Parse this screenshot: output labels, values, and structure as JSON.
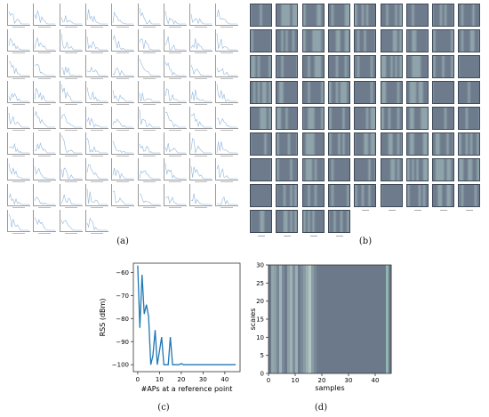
{
  "figure": {
    "captions": {
      "a": "(a)",
      "b": "(b)",
      "c": "(c)",
      "d": "(d)"
    }
  },
  "panel_a": {
    "count": 76,
    "columns": 9
  },
  "panel_b": {
    "count": 76,
    "columns": 9
  },
  "chart_data": [
    {
      "id": "c",
      "type": "line",
      "xlabel": "#APs at a reference point",
      "ylabel": "RSS (dBm)",
      "xlim": [
        -2,
        47
      ],
      "ylim": [
        -103,
        -56
      ],
      "xticks": [
        0,
        10,
        20,
        30,
        40
      ],
      "yticks": [
        -60,
        -70,
        -80,
        -90,
        -100
      ],
      "grid": false,
      "series": [
        {
          "color": "#1f77b4",
          "x": [
            0,
            1,
            2,
            3,
            4,
            5,
            6,
            7,
            8,
            9,
            10,
            11,
            12,
            13,
            14,
            15,
            16,
            17,
            18,
            19,
            20,
            21,
            22,
            23,
            24,
            25,
            26,
            27,
            28,
            29,
            30,
            31,
            32,
            33,
            34,
            35,
            36,
            37,
            38,
            39,
            40,
            41,
            42,
            43,
            44,
            45
          ],
          "y": [
            -57,
            -84,
            -61,
            -78,
            -74,
            -79,
            -100,
            -96,
            -85,
            -100,
            -94,
            -88,
            -100,
            -100,
            -100,
            -88,
            -100,
            -100,
            -100,
            -100,
            -99.5,
            -100,
            -100,
            -100,
            -100,
            -100,
            -100,
            -100,
            -100,
            -100,
            -100,
            -100,
            -100,
            -100,
            -100,
            -100,
            -100,
            -100,
            -100,
            -100,
            -100,
            -100,
            -100,
            -100,
            -100,
            -100
          ]
        }
      ]
    },
    {
      "id": "d",
      "type": "heatmap",
      "xlabel": "samples",
      "ylabel": "scales",
      "xlim": [
        0,
        46
      ],
      "ylim": [
        0,
        30
      ],
      "xticks": [
        0,
        10,
        20,
        30,
        40
      ],
      "yticks": [
        0,
        5,
        10,
        15,
        20,
        25,
        30
      ],
      "column_colors": [
        "#6b7a8a",
        "#93a7ad",
        "#8da0a8",
        "#788898",
        "#9fb4b6",
        "#7a8a9a",
        "#6c7a8b",
        "#8e9fa8",
        "#a0b2b5",
        "#7f8e9c",
        "#9ab0b3",
        "#6f7d8e",
        "#7c8b9a",
        "#8a9ba4",
        "#9ab0b3",
        "#b1c4c1",
        "#8b9ca6",
        "#7a8998",
        "#6d7b8c",
        "#6b798a",
        "#6b798a",
        "#6b798a",
        "#6b798a",
        "#6b798a",
        "#6b798a",
        "#6b798a",
        "#6b798a",
        "#6b798a",
        "#6b798a",
        "#6b798a",
        "#6b798a",
        "#6b798a",
        "#6b798a",
        "#6b798a",
        "#6b798a",
        "#6b798a",
        "#6b798a",
        "#6b798a",
        "#6b798a",
        "#6b798a",
        "#6b798a",
        "#6b798a",
        "#6b798a",
        "#6b798a",
        "#8fb7b0",
        "#6b798a"
      ]
    }
  ]
}
